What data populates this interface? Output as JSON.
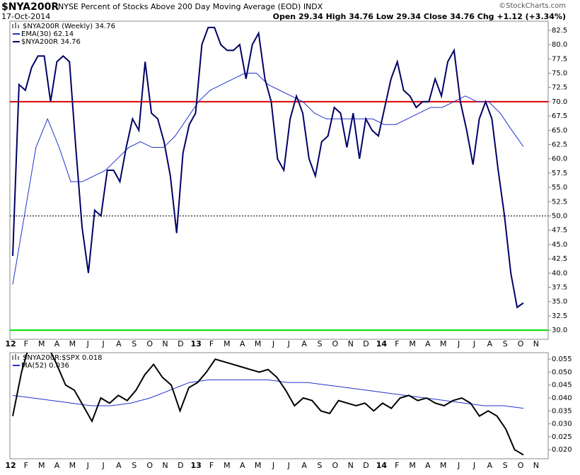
{
  "header": {
    "symbol": "$NYA200R",
    "description": "NYSE Percent of Stocks Above 200 Day Moving Average (EOD) INDX",
    "date": "17-Oct-2014",
    "quote": "Open 29.34 High 34.76 Low 29.34 Close 34.76 Chg +1.12 (+3.34%)",
    "credit": "©StockCharts.com"
  },
  "x_labels": [
    "12",
    "F",
    "M",
    "A",
    "M",
    "J",
    "J",
    "A",
    "S",
    "O",
    "N",
    "D",
    "13",
    "F",
    "M",
    "A",
    "M",
    "J",
    "J",
    "A",
    "S",
    "O",
    "N",
    "D",
    "14",
    "F",
    "M",
    "A",
    "M",
    "J",
    "J",
    "A",
    "S",
    "O",
    "N"
  ],
  "chart_data": [
    {
      "type": "line",
      "ylim": [
        28.4,
        84.1
      ],
      "yticks": [
        {
          "value": 30,
          "label": "30.0"
        },
        {
          "value": 32.5,
          "label": "32.5"
        },
        {
          "value": 35,
          "label": "35.0"
        },
        {
          "value": 37.5,
          "label": "37.5"
        },
        {
          "value": 40,
          "label": "40.0"
        },
        {
          "value": 42.5,
          "label": "42.5"
        },
        {
          "value": 45,
          "label": "45.0"
        },
        {
          "value": 47.5,
          "label": "47.5"
        },
        {
          "value": 50,
          "label": "50.0"
        },
        {
          "value": 52.5,
          "label": "52.5"
        },
        {
          "value": 55,
          "label": "55.0"
        },
        {
          "value": 57.5,
          "label": "57.5"
        },
        {
          "value": 60,
          "label": "60.0"
        },
        {
          "value": 62.5,
          "label": "62.5"
        },
        {
          "value": 65,
          "label": "65.0"
        },
        {
          "value": 67.5,
          "label": "67.5"
        },
        {
          "value": 70,
          "label": "70.0"
        },
        {
          "value": 72.5,
          "label": "72.5"
        },
        {
          "value": 75,
          "label": "75.0"
        },
        {
          "value": 77.5,
          "label": "77.5"
        },
        {
          "value": 80,
          "label": "80.0"
        },
        {
          "value": 82.5,
          "label": "82.5"
        }
      ],
      "reference_lines": [
        {
          "value": 70,
          "color": "#dd0000"
        },
        {
          "value": 50,
          "color": "#000000"
        },
        {
          "value": 30,
          "color": "#00dd00"
        }
      ],
      "legend_title": "$NYA200R (Weekly) 34.76",
      "series": [
        {
          "name": "EMA(30) 62.14",
          "color": "#2233cc",
          "width": 1,
          "values": [
            38,
            50,
            62,
            67,
            62,
            56,
            56,
            57,
            58,
            60,
            62,
            63,
            62,
            62,
            64,
            67,
            70,
            72,
            73,
            74,
            75,
            75,
            73,
            72,
            71,
            70,
            68,
            67,
            67,
            67,
            67,
            67,
            66,
            66,
            67,
            68,
            69,
            69,
            70,
            71,
            70,
            70,
            68,
            65,
            62.14
          ]
        },
        {
          "name": "$NYA200R 34.76",
          "color": "#000066",
          "width": 2,
          "values": [
            43,
            73,
            72,
            76,
            78,
            78,
            70,
            77,
            78,
            77,
            62,
            48,
            40,
            51,
            50,
            58,
            58,
            56,
            62,
            67,
            65,
            77,
            68,
            67,
            63,
            57,
            47,
            61,
            66,
            68,
            80,
            83,
            83,
            80,
            79,
            79,
            80,
            74,
            80,
            82,
            74,
            70,
            60,
            58,
            67,
            71,
            68,
            60,
            57,
            63,
            64,
            69,
            68,
            62,
            68,
            60,
            67,
            65,
            64,
            69,
            74,
            77,
            72,
            71,
            69,
            70,
            70,
            74,
            71,
            77,
            79,
            70,
            65,
            59,
            67,
            70,
            67,
            58,
            50,
            40,
            34,
            34.76
          ]
        }
      ]
    },
    {
      "type": "line",
      "ylim": [
        0.0165,
        0.0575
      ],
      "yticks": [
        {
          "value": 0.02,
          "label": "0.020"
        },
        {
          "value": 0.025,
          "label": "0.025"
        },
        {
          "value": 0.03,
          "label": "0.030"
        },
        {
          "value": 0.035,
          "label": "0.035"
        },
        {
          "value": 0.04,
          "label": "0.040"
        },
        {
          "value": 0.045,
          "label": "0.045"
        },
        {
          "value": 0.05,
          "label": "0.050"
        },
        {
          "value": 0.055,
          "label": "0.055"
        }
      ],
      "legend_title": "$NYA200R:$SPX 0.018",
      "series": [
        {
          "name": "MA(52) 0.036",
          "color": "#2233cc",
          "width": 1,
          "values": [
            0.041,
            0.04,
            0.039,
            0.038,
            0.037,
            0.037,
            0.038,
            0.04,
            0.043,
            0.046,
            0.047,
            0.047,
            0.047,
            0.047,
            0.046,
            0.046,
            0.045,
            0.044,
            0.043,
            0.042,
            0.041,
            0.04,
            0.039,
            0.038,
            0.037,
            0.037,
            0.036
          ]
        },
        {
          "name": "$NYA200R:$SPX 0.018",
          "color": "#000000",
          "width": 2,
          "values": [
            0.033,
            0.05,
            0.062,
            0.064,
            0.06,
            0.053,
            0.045,
            0.043,
            0.037,
            0.031,
            0.04,
            0.038,
            0.041,
            0.039,
            0.043,
            0.049,
            0.053,
            0.048,
            0.045,
            0.035,
            0.044,
            0.046,
            0.05,
            0.055,
            0.054,
            0.053,
            0.052,
            0.051,
            0.05,
            0.051,
            0.048,
            0.043,
            0.037,
            0.04,
            0.039,
            0.035,
            0.034,
            0.039,
            0.038,
            0.037,
            0.038,
            0.035,
            0.038,
            0.036,
            0.04,
            0.041,
            0.039,
            0.04,
            0.038,
            0.037,
            0.039,
            0.04,
            0.038,
            0.033,
            0.035,
            0.033,
            0.028,
            0.02,
            0.018
          ]
        }
      ]
    }
  ]
}
